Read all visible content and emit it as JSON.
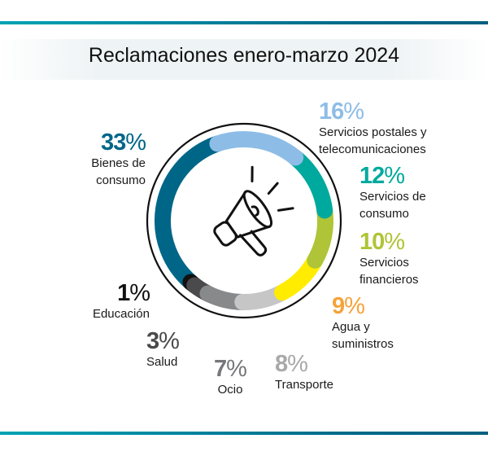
{
  "title": "Reclamaciones enero-marzo 2024",
  "chart_data": {
    "type": "donut",
    "title": "Reclamaciones enero-marzo 2024",
    "center_icon": "megaphone-icon",
    "slices": [
      {
        "label": "Servicios postales y telecomunicaciones",
        "line1": "Servicios postales y",
        "line2": "telecomunicaciones",
        "value": 16,
        "pct": "16",
        "color": "#8dbde6",
        "text_color": "#8dbde6"
      },
      {
        "label": "Servicios de consumo",
        "line1": "Servicios de",
        "line2": "consumo",
        "value": 12,
        "pct": "12",
        "color": "#00a99d",
        "text_color": "#00a99d"
      },
      {
        "label": "Servicios financieros",
        "line1": "Servicios",
        "line2": "financieros",
        "value": 10,
        "pct": "10",
        "color": "#afc436",
        "text_color": "#afc436"
      },
      {
        "label": "Agua y suministros",
        "line1": "Agua y",
        "line2": "suministros",
        "value": 9,
        "pct": "9",
        "color": "#ffec00",
        "text_color": "#f5a33a"
      },
      {
        "label": "Transporte",
        "line1": "Transporte",
        "line2": "",
        "value": 8,
        "pct": "8",
        "color": "#c6c6c7",
        "text_color": "#a9a9aa"
      },
      {
        "label": "Ocio",
        "line1": "Ocio",
        "line2": "",
        "value": 7,
        "pct": "7",
        "color": "#88898b",
        "text_color": "#76777a"
      },
      {
        "label": "Salud",
        "line1": "Salud",
        "line2": "",
        "value": 3,
        "pct": "3",
        "color": "#4a4a4c",
        "text_color": "#4a4a4c"
      },
      {
        "label": "Educación",
        "line1": "Educación",
        "line2": "",
        "value": 1,
        "pct": "1",
        "color": "#111111",
        "text_color": "#111111"
      },
      {
        "label": "Bienes de consumo",
        "line1": "Bienes de",
        "line2": "consumo",
        "value": 33,
        "pct": "33",
        "color": "#006688",
        "text_color": "#006688"
      }
    ],
    "percent_sign": "%"
  }
}
